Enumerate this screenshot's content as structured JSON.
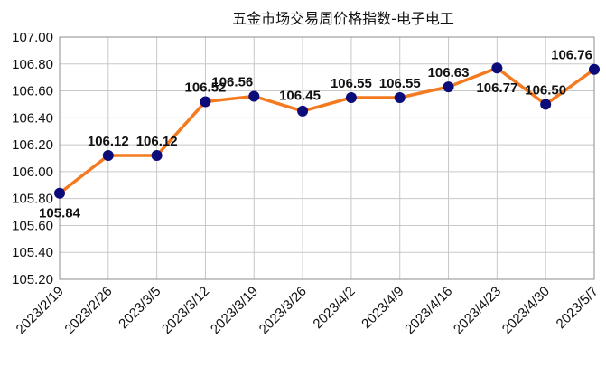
{
  "chart_data": {
    "type": "line",
    "title": "五金市场交易周价格指数-电子电工",
    "xlabel": "",
    "ylabel": "",
    "categories": [
      "2023/2/19",
      "2023/2/26",
      "2023/3/5",
      "2023/3/12",
      "2023/3/19",
      "2023/3/26",
      "2023/4/2",
      "2023/4/9",
      "2023/4/16",
      "2023/4/23",
      "2023/4/30",
      "2023/5/7"
    ],
    "series": [
      {
        "values": [
          105.84,
          106.12,
          106.12,
          106.52,
          106.56,
          106.45,
          106.55,
          106.55,
          106.63,
          106.77,
          106.5,
          106.76
        ],
        "data_labels": [
          "105.84",
          "106.12",
          "106.12",
          "106.52",
          "106.56",
          "106.45",
          "106.55",
          "106.55",
          "106.63",
          "106.77",
          "106.50",
          "106.76"
        ],
        "line_color": "#F47A20",
        "marker_color": "#0B0B7A"
      }
    ],
    "ylim": [
      105.2,
      107.0
    ],
    "yticks": [
      "105.20",
      "105.40",
      "105.60",
      "105.80",
      "106.00",
      "106.20",
      "106.40",
      "106.60",
      "106.80",
      "107.00"
    ],
    "grid": true,
    "legend": "none",
    "gridline_color": "#C8C8C8"
  }
}
